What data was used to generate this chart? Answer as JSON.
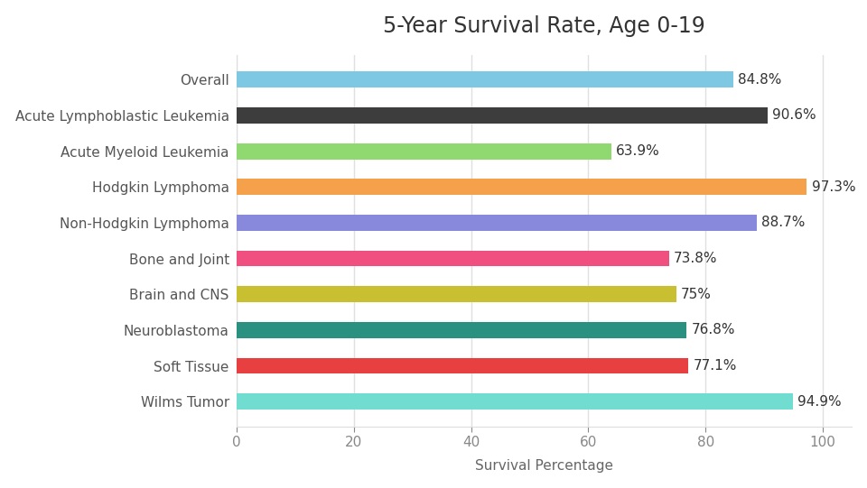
{
  "title": "5-Year Survival Rate, Age 0-19",
  "xlabel": "Survival Percentage",
  "categories": [
    "Overall",
    "Acute Lymphoblastic Leukemia",
    "Acute Myeloid Leukemia",
    "Hodgkin Lymphoma",
    "Non-Hodgkin Lymphoma",
    "Bone and Joint",
    "Brain and CNS",
    "Neuroblastoma",
    "Soft Tissue",
    "Wilms Tumor"
  ],
  "values": [
    84.8,
    90.6,
    63.9,
    97.3,
    88.7,
    73.8,
    75.0,
    76.8,
    77.1,
    94.9
  ],
  "labels": [
    "84.8%",
    "90.6%",
    "63.9%",
    "97.3%",
    "88.7%",
    "73.8%",
    "75%",
    "76.8%",
    "77.1%",
    "94.9%"
  ],
  "colors": [
    "#7EC8E3",
    "#3D3D3D",
    "#90D870",
    "#F5A04A",
    "#8888DD",
    "#F05080",
    "#C8C030",
    "#2A9080",
    "#E84040",
    "#70DDD0"
  ],
  "xlim": [
    0,
    105
  ],
  "xticks": [
    0,
    20,
    40,
    60,
    80,
    100
  ],
  "background_color": "#FFFFFF",
  "grid_color": "#E0E0E0",
  "title_fontsize": 17,
  "label_fontsize": 11,
  "tick_fontsize": 11,
  "bar_height": 0.45
}
